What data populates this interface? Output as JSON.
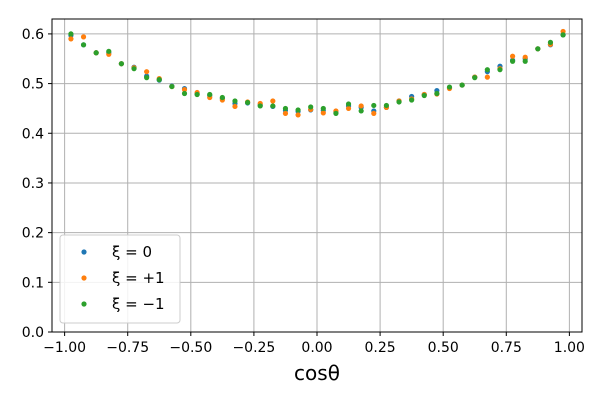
{
  "chart_data": {
    "type": "scatter",
    "title": "",
    "xlabel": "cosθ",
    "ylabel": "",
    "xlim": [
      -1.05,
      1.05
    ],
    "ylim": [
      0.0,
      0.63
    ],
    "grid": true,
    "legend_position": "lower-left",
    "x_ticks": [
      "−1.00",
      "−0.75",
      "−0.50",
      "−0.25",
      "0.00",
      "0.25",
      "0.50",
      "0.75",
      "1.00"
    ],
    "x_tick_values": [
      -1.0,
      -0.75,
      -0.5,
      -0.25,
      0.0,
      0.25,
      0.5,
      0.75,
      1.0
    ],
    "y_ticks": [
      "0.0",
      "0.1",
      "0.2",
      "0.3",
      "0.4",
      "0.5",
      "0.6"
    ],
    "y_tick_values": [
      0.0,
      0.1,
      0.2,
      0.3,
      0.4,
      0.5,
      0.6
    ],
    "x": [
      -0.975,
      -0.925,
      -0.875,
      -0.825,
      -0.775,
      -0.725,
      -0.675,
      -0.625,
      -0.575,
      -0.525,
      -0.475,
      -0.425,
      -0.375,
      -0.325,
      -0.275,
      -0.225,
      -0.175,
      -0.125,
      -0.075,
      -0.025,
      0.025,
      0.075,
      0.125,
      0.175,
      0.225,
      0.275,
      0.325,
      0.375,
      0.425,
      0.475,
      0.525,
      0.575,
      0.625,
      0.675,
      0.725,
      0.775,
      0.825,
      0.875,
      0.925,
      0.975
    ],
    "series": [
      {
        "name": "ξ = 0",
        "color": "#1f77b4",
        "values": [
          0.597,
          0.578,
          0.562,
          0.562,
          0.54,
          0.533,
          0.515,
          0.507,
          0.495,
          0.49,
          0.479,
          0.476,
          0.47,
          0.46,
          0.461,
          0.457,
          0.454,
          0.446,
          0.444,
          0.447,
          0.446,
          0.443,
          0.455,
          0.452,
          0.445,
          0.452,
          0.465,
          0.474,
          0.478,
          0.486,
          0.491,
          0.497,
          0.513,
          0.524,
          0.535,
          0.547,
          0.55,
          0.57,
          0.578,
          0.598
        ]
      },
      {
        "name": "ξ = +1",
        "color": "#ff7f0e",
        "values": [
          0.59,
          0.594,
          0.562,
          0.559,
          0.54,
          0.532,
          0.524,
          0.51,
          0.494,
          0.488,
          0.482,
          0.472,
          0.467,
          0.454,
          0.463,
          0.46,
          0.465,
          0.44,
          0.437,
          0.448,
          0.441,
          0.445,
          0.45,
          0.455,
          0.44,
          0.452,
          0.465,
          0.469,
          0.478,
          0.479,
          0.49,
          0.497,
          0.513,
          0.513,
          0.53,
          0.555,
          0.553,
          0.57,
          0.579,
          0.605
        ]
      },
      {
        "name": "ξ = −1",
        "color": "#2ca02c",
        "values": [
          0.6,
          0.578,
          0.562,
          0.565,
          0.54,
          0.53,
          0.512,
          0.508,
          0.494,
          0.48,
          0.478,
          0.478,
          0.472,
          0.465,
          0.462,
          0.455,
          0.455,
          0.45,
          0.447,
          0.453,
          0.45,
          0.44,
          0.459,
          0.445,
          0.456,
          0.456,
          0.463,
          0.467,
          0.476,
          0.48,
          0.493,
          0.497,
          0.512,
          0.528,
          0.528,
          0.545,
          0.545,
          0.57,
          0.583,
          0.598
        ]
      }
    ]
  }
}
